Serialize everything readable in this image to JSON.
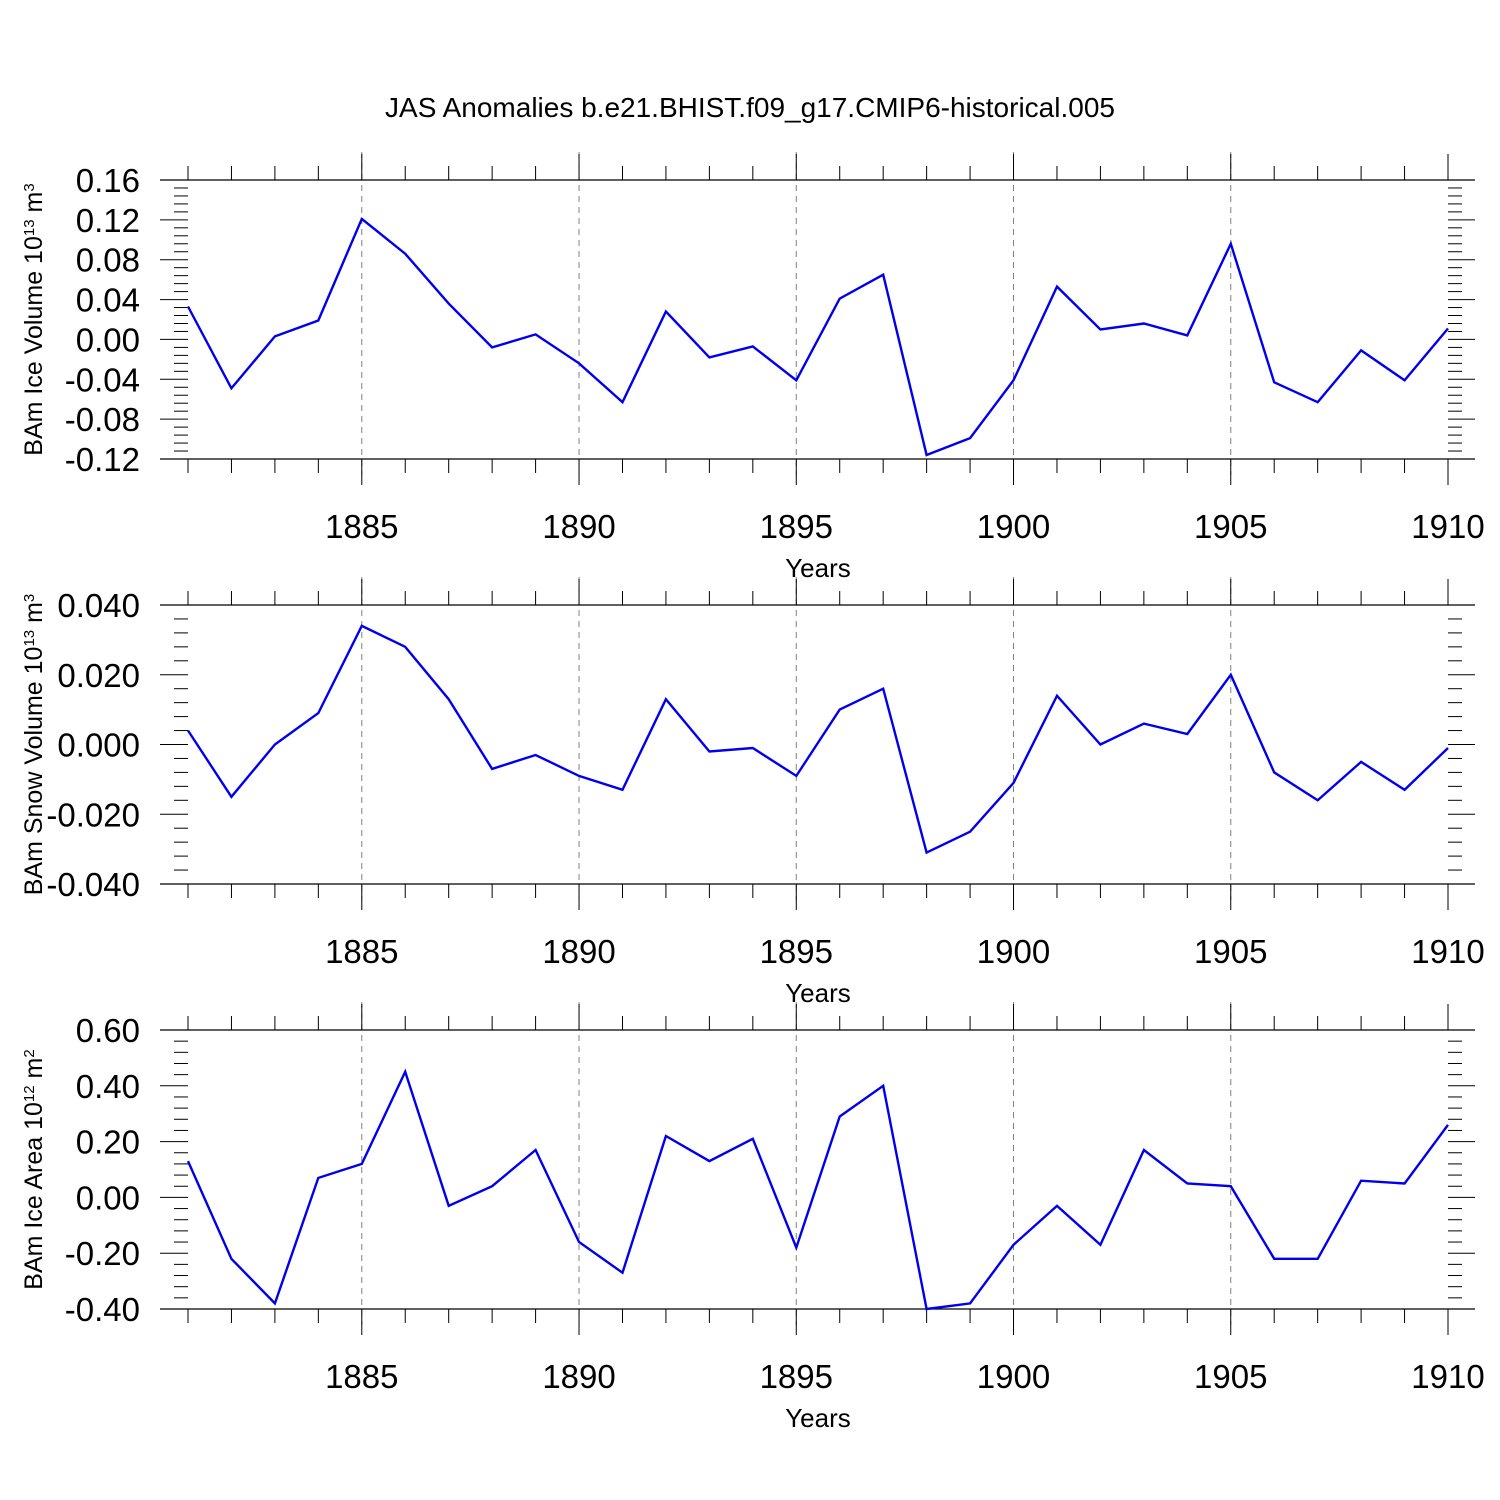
{
  "figure": {
    "title": "JAS Anomalies b.e21.BHIST.f09_g17.CMIP6-historical.005"
  },
  "chart_data": [
    {
      "type": "line",
      "ylabel": {
        "main": "BAm Ice Volume 10",
        "exp": "13",
        "unit": " m",
        "unit_exp": "3"
      },
      "xlabel": "Years",
      "xlim": [
        1881,
        1910
      ],
      "xticks": [
        1885,
        1890,
        1895,
        1900,
        1905,
        1910
      ],
      "ylim": [
        -0.12,
        0.16
      ],
      "yticks": [
        -0.12,
        -0.08,
        -0.04,
        0.0,
        0.04,
        0.08,
        0.12,
        0.16
      ],
      "ytick_labels": [
        "-0.12",
        "-0.08",
        "-0.04",
        "0.00",
        "0.04",
        "0.08",
        "0.12",
        "0.16"
      ],
      "grid_dashed_x": [
        1885,
        1890,
        1895,
        1900,
        1905
      ],
      "line_color": "#0000ee",
      "x": [
        1881,
        1882,
        1883,
        1884,
        1885,
        1886,
        1887,
        1888,
        1889,
        1890,
        1891,
        1892,
        1893,
        1894,
        1895,
        1896,
        1897,
        1898,
        1899,
        1900,
        1901,
        1902,
        1903,
        1904,
        1905,
        1906,
        1907,
        1908,
        1909,
        1910
      ],
      "values": [
        0.033,
        -0.049,
        0.003,
        0.019,
        0.121,
        0.086,
        0.036,
        -0.008,
        0.005,
        -0.024,
        -0.063,
        0.028,
        -0.018,
        -0.007,
        -0.041,
        0.041,
        0.065,
        -0.116,
        -0.099,
        -0.041,
        0.053,
        0.01,
        0.016,
        0.004,
        0.096,
        -0.043,
        -0.063,
        -0.011,
        -0.041,
        0.011
      ]
    },
    {
      "type": "line",
      "ylabel": {
        "main": "BAm Snow Volume 10",
        "exp": "13",
        "unit": " m",
        "unit_exp": "3"
      },
      "xlabel": "Years",
      "xlim": [
        1881,
        1910
      ],
      "xticks": [
        1885,
        1890,
        1895,
        1900,
        1905,
        1910
      ],
      "ylim": [
        -0.04,
        0.04
      ],
      "yticks": [
        -0.04,
        -0.02,
        0.0,
        0.02,
        0.04
      ],
      "ytick_labels": [
        "-0.040",
        "-0.020",
        "0.000",
        "0.020",
        "0.040"
      ],
      "grid_dashed_x": [
        1885,
        1890,
        1895,
        1900,
        1905
      ],
      "line_color": "#0000ee",
      "x": [
        1881,
        1882,
        1883,
        1884,
        1885,
        1886,
        1887,
        1888,
        1889,
        1890,
        1891,
        1892,
        1893,
        1894,
        1895,
        1896,
        1897,
        1898,
        1899,
        1900,
        1901,
        1902,
        1903,
        1904,
        1905,
        1906,
        1907,
        1908,
        1909,
        1910
      ],
      "values": [
        0.004,
        -0.015,
        0.0,
        0.009,
        0.034,
        0.028,
        0.013,
        -0.007,
        -0.003,
        -0.009,
        -0.013,
        0.013,
        -0.002,
        -0.001,
        -0.009,
        0.01,
        0.016,
        -0.031,
        -0.025,
        -0.011,
        0.014,
        0.0,
        0.006,
        0.003,
        0.02,
        -0.008,
        -0.016,
        -0.005,
        -0.013,
        -0.001
      ]
    },
    {
      "type": "line",
      "ylabel": {
        "main": "BAm Ice Area 10",
        "exp": "12",
        "unit": " m",
        "unit_exp": "2"
      },
      "xlabel": "Years",
      "xlim": [
        1881,
        1910
      ],
      "xticks": [
        1885,
        1890,
        1895,
        1900,
        1905,
        1910
      ],
      "ylim": [
        -0.4,
        0.6
      ],
      "yticks": [
        -0.4,
        -0.2,
        0.0,
        0.2,
        0.4,
        0.6
      ],
      "ytick_labels": [
        "-0.40",
        "-0.20",
        "0.00",
        "0.20",
        "0.40",
        "0.60"
      ],
      "grid_dashed_x": [
        1885,
        1890,
        1895,
        1900,
        1905
      ],
      "line_color": "#0000ee",
      "x": [
        1881,
        1882,
        1883,
        1884,
        1885,
        1886,
        1887,
        1888,
        1889,
        1890,
        1891,
        1892,
        1893,
        1894,
        1895,
        1896,
        1897,
        1898,
        1899,
        1900,
        1901,
        1902,
        1903,
        1904,
        1905,
        1906,
        1907,
        1908,
        1909,
        1910
      ],
      "values": [
        0.13,
        -0.22,
        -0.38,
        0.07,
        0.12,
        0.45,
        -0.03,
        0.04,
        0.17,
        -0.16,
        -0.27,
        0.22,
        0.13,
        0.21,
        -0.18,
        0.29,
        0.4,
        -0.4,
        -0.38,
        -0.17,
        -0.03,
        -0.17,
        0.17,
        0.05,
        0.04,
        -0.22,
        -0.22,
        0.06,
        0.05,
        0.26
      ]
    }
  ]
}
